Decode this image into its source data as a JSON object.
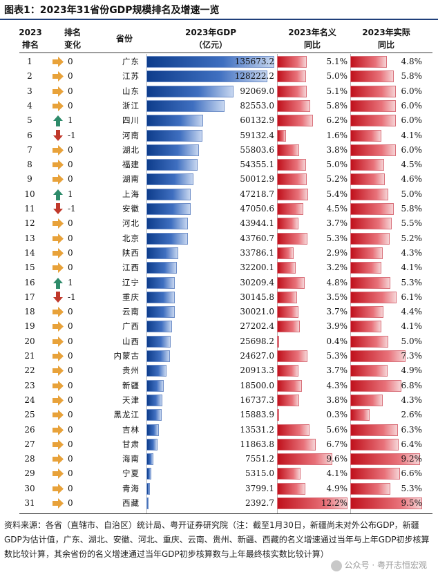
{
  "title": "图表1：2023年31省份GDP规模排名及增速一览",
  "headers": {
    "rank": [
      "2023",
      "排名"
    ],
    "change": [
      "排名",
      "变化"
    ],
    "province": "省份",
    "gdp": [
      "2023年GDP",
      "（亿元）"
    ],
    "nominal": [
      "2023年名义",
      "同比"
    ],
    "real": [
      "2023年实际",
      "同比"
    ]
  },
  "colors": {
    "gdp_bar": "#1f4fa0",
    "growth_bar": "#d3222d",
    "arrow_flat": "#e8a23a",
    "arrow_up": "#2e8b6a",
    "arrow_down": "#c0392b"
  },
  "chart_data": {
    "type": "table",
    "columns": [
      "2023排名",
      "排名变化",
      "省份",
      "2023年GDP（亿元）",
      "2023年名义同比",
      "2023年实际同比"
    ],
    "rows": [
      {
        "rank": "1",
        "change": "0",
        "dir": "flat",
        "province": "广东",
        "gdp": 135673.2,
        "gdp_label": "135673.2",
        "nominal": 5.1,
        "nominal_label": "5.1%",
        "real": 4.8,
        "real_label": "4.8%"
      },
      {
        "rank": "2",
        "change": "0",
        "dir": "flat",
        "province": "江苏",
        "gdp": 128222.2,
        "gdp_label": "128222.2",
        "nominal": 5.0,
        "nominal_label": "5.0%",
        "real": 5.8,
        "real_label": "5.8%"
      },
      {
        "rank": "3",
        "change": "0",
        "dir": "flat",
        "province": "山东",
        "gdp": 92069.0,
        "gdp_label": "92069.0",
        "nominal": 5.1,
        "nominal_label": "5.1%",
        "real": 6.0,
        "real_label": "6.0%"
      },
      {
        "rank": "4",
        "change": "0",
        "dir": "flat",
        "province": "浙江",
        "gdp": 82553.0,
        "gdp_label": "82553.0",
        "nominal": 5.8,
        "nominal_label": "5.8%",
        "real": 6.0,
        "real_label": "6.0%"
      },
      {
        "rank": "5",
        "change": "1",
        "dir": "up",
        "province": "四川",
        "gdp": 60132.9,
        "gdp_label": "60132.9",
        "nominal": 6.2,
        "nominal_label": "6.2%",
        "real": 6.0,
        "real_label": "6.0%"
      },
      {
        "rank": "6",
        "change": "-1",
        "dir": "down",
        "province": "河南",
        "gdp": 59132.4,
        "gdp_label": "59132.4",
        "nominal": 1.6,
        "nominal_label": "1.6%",
        "real": 4.1,
        "real_label": "4.1%"
      },
      {
        "rank": "7",
        "change": "0",
        "dir": "flat",
        "province": "湖北",
        "gdp": 55803.6,
        "gdp_label": "55803.6",
        "nominal": 3.8,
        "nominal_label": "3.8%",
        "real": 6.0,
        "real_label": "6.0%"
      },
      {
        "rank": "8",
        "change": "0",
        "dir": "flat",
        "province": "福建",
        "gdp": 54355.1,
        "gdp_label": "54355.1",
        "nominal": 5.0,
        "nominal_label": "5.0%",
        "real": 4.5,
        "real_label": "4.5%"
      },
      {
        "rank": "9",
        "change": "0",
        "dir": "flat",
        "province": "湖南",
        "gdp": 50012.9,
        "gdp_label": "50012.9",
        "nominal": 5.2,
        "nominal_label": "5.2%",
        "real": 4.6,
        "real_label": "4.6%"
      },
      {
        "rank": "10",
        "change": "1",
        "dir": "up",
        "province": "上海",
        "gdp": 47218.7,
        "gdp_label": "47218.7",
        "nominal": 5.4,
        "nominal_label": "5.4%",
        "real": 5.0,
        "real_label": "5.0%"
      },
      {
        "rank": "11",
        "change": "-1",
        "dir": "down",
        "province": "安徽",
        "gdp": 47050.6,
        "gdp_label": "47050.6",
        "nominal": 4.5,
        "nominal_label": "4.5%",
        "real": 5.8,
        "real_label": "5.8%"
      },
      {
        "rank": "12",
        "change": "0",
        "dir": "flat",
        "province": "河北",
        "gdp": 43944.1,
        "gdp_label": "43944.1",
        "nominal": 3.7,
        "nominal_label": "3.7%",
        "real": 5.5,
        "real_label": "5.5%"
      },
      {
        "rank": "13",
        "change": "0",
        "dir": "flat",
        "province": "北京",
        "gdp": 43760.7,
        "gdp_label": "43760.7",
        "nominal": 5.3,
        "nominal_label": "5.3%",
        "real": 5.2,
        "real_label": "5.2%"
      },
      {
        "rank": "14",
        "change": "0",
        "dir": "flat",
        "province": "陕西",
        "gdp": 33786.1,
        "gdp_label": "33786.1",
        "nominal": 2.9,
        "nominal_label": "2.9%",
        "real": 4.3,
        "real_label": "4.3%"
      },
      {
        "rank": "15",
        "change": "0",
        "dir": "flat",
        "province": "江西",
        "gdp": 32200.1,
        "gdp_label": "32200.1",
        "nominal": 3.2,
        "nominal_label": "3.2%",
        "real": 4.1,
        "real_label": "4.1%"
      },
      {
        "rank": "16",
        "change": "1",
        "dir": "up",
        "province": "辽宁",
        "gdp": 30209.4,
        "gdp_label": "30209.4",
        "nominal": 4.8,
        "nominal_label": "4.8%",
        "real": 5.3,
        "real_label": "5.3%"
      },
      {
        "rank": "17",
        "change": "-1",
        "dir": "down",
        "province": "重庆",
        "gdp": 30145.8,
        "gdp_label": "30145.8",
        "nominal": 3.5,
        "nominal_label": "3.5%",
        "real": 6.1,
        "real_label": "6.1%"
      },
      {
        "rank": "18",
        "change": "0",
        "dir": "flat",
        "province": "云南",
        "gdp": 30021.0,
        "gdp_label": "30021.0",
        "nominal": 3.7,
        "nominal_label": "3.7%",
        "real": 4.4,
        "real_label": "4.4%"
      },
      {
        "rank": "19",
        "change": "0",
        "dir": "flat",
        "province": "广西",
        "gdp": 27202.4,
        "gdp_label": "27202.4",
        "nominal": 3.9,
        "nominal_label": "3.9%",
        "real": 4.1,
        "real_label": "4.1%"
      },
      {
        "rank": "20",
        "change": "0",
        "dir": "flat",
        "province": "山西",
        "gdp": 25698.2,
        "gdp_label": "25698.2",
        "nominal": 0.4,
        "nominal_label": "0.4%",
        "real": 5.0,
        "real_label": "5.0%"
      },
      {
        "rank": "21",
        "change": "0",
        "dir": "flat",
        "province": "内蒙古",
        "gdp": 24627.0,
        "gdp_label": "24627.0",
        "nominal": 5.3,
        "nominal_label": "5.3%",
        "real": 7.3,
        "real_label": "7.3%"
      },
      {
        "rank": "22",
        "change": "0",
        "dir": "flat",
        "province": "贵州",
        "gdp": 20913.3,
        "gdp_label": "20913.3",
        "nominal": 3.7,
        "nominal_label": "3.7%",
        "real": 4.9,
        "real_label": "4.9%"
      },
      {
        "rank": "23",
        "change": "0",
        "dir": "flat",
        "province": "新疆",
        "gdp": 18500.0,
        "gdp_label": "18500.0",
        "nominal": 4.3,
        "nominal_label": "4.3%",
        "real": 6.8,
        "real_label": "6.8%"
      },
      {
        "rank": "24",
        "change": "0",
        "dir": "flat",
        "province": "天津",
        "gdp": 16737.3,
        "gdp_label": "16737.3",
        "nominal": 3.8,
        "nominal_label": "3.8%",
        "real": 4.3,
        "real_label": "4.3%"
      },
      {
        "rank": "25",
        "change": "0",
        "dir": "flat",
        "province": "黑龙江",
        "gdp": 15883.9,
        "gdp_label": "15883.9",
        "nominal": 0.3,
        "nominal_label": "0.3%",
        "real": 2.6,
        "real_label": "2.6%"
      },
      {
        "rank": "26",
        "change": "0",
        "dir": "flat",
        "province": "吉林",
        "gdp": 13531.2,
        "gdp_label": "13531.2",
        "nominal": 5.6,
        "nominal_label": "5.6%",
        "real": 6.3,
        "real_label": "6.3%"
      },
      {
        "rank": "27",
        "change": "0",
        "dir": "flat",
        "province": "甘肃",
        "gdp": 11863.8,
        "gdp_label": "11863.8",
        "nominal": 6.7,
        "nominal_label": "6.7%",
        "real": 6.4,
        "real_label": "6.4%"
      },
      {
        "rank": "28",
        "change": "0",
        "dir": "flat",
        "province": "海南",
        "gdp": 7551.2,
        "gdp_label": "7551.2",
        "nominal": 9.6,
        "nominal_label": "9.6%",
        "real": 9.2,
        "real_label": "9.2%"
      },
      {
        "rank": "29",
        "change": "0",
        "dir": "flat",
        "province": "宁夏",
        "gdp": 5315.0,
        "gdp_label": "5315.0",
        "nominal": 4.1,
        "nominal_label": "4.1%",
        "real": 6.6,
        "real_label": "6.6%"
      },
      {
        "rank": "30",
        "change": "0",
        "dir": "flat",
        "province": "青海",
        "gdp": 3799.1,
        "gdp_label": "3799.1",
        "nominal": 4.9,
        "nominal_label": "4.9%",
        "real": 5.3,
        "real_label": "5.3%"
      },
      {
        "rank": "31",
        "change": "0",
        "dir": "flat",
        "province": "西藏",
        "gdp": 2392.7,
        "gdp_label": "2392.7",
        "nominal": 12.2,
        "nominal_label": "12.2%",
        "real": 9.5,
        "real_label": "9.5%"
      }
    ]
  },
  "note": "资料来源：各省（直辖市、自治区）统计局、粤开证券研究院（注：截至1月30日，新疆尚未对外公布GDP，新疆GDP为估计值，广东、湖北、安徽、河北、重庆、云南、贵州、新疆、西藏的名义增速通过当年与上年GDP初步核算数比较计算，其余省份的名义增速通过当年GDP初步核算数与上年最终核实数比较计算）",
  "watermark": "公众号 · 粤开志恒宏观"
}
